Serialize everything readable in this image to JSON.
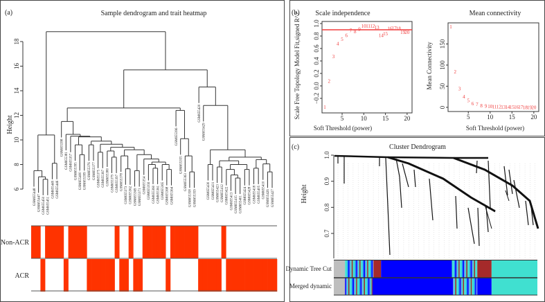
{
  "chart_data": [
    {
      "panel": "(a)",
      "type": "dendrogram",
      "title": "Sample dendrogram and trait heatmap",
      "ylabel": "Height",
      "ylim": [
        6,
        19
      ],
      "yticks": [
        "6",
        "8",
        "10",
        "12",
        "14",
        "16",
        "18"
      ],
      "samples": [
        "GSM655448",
        "GSM655447",
        "GSM655450",
        "GSM655451",
        "GSM655449",
        "GSM655446",
        "GSM655398",
        "GSM655381",
        "GSM655357",
        "GSM655395",
        "GSM655400",
        "GSM655399",
        "GSM655376",
        "GSM655377",
        "GSM655375",
        "GSM655367",
        "GSM655380",
        "GSM655379",
        "GSM655397",
        "GSM655378",
        "GSM655373",
        "GSM655362",
        "GSM655369",
        "GSM655371",
        "GSM655354",
        "GSM655356",
        "GSM655360",
        "GSM655361",
        "GSM655365",
        "GSM655368",
        "GSM655364",
        "GSM655396",
        "GSM655355",
        "GSM655363",
        "GSM655358",
        "GSM655359",
        "GSM655420",
        "GSM655429",
        "GSM655430",
        "GSM655431",
        "GSM655423",
        "GSM655412",
        "GSM655422",
        "GSM655413",
        "GSM655415",
        "GSM655401",
        "GSM655424",
        "GSM655428",
        "GSM655418",
        "GSM655405",
        "GSM655410",
        "GSM655426",
        "GSM655427"
      ],
      "tree": [
        18.8,
        [
          10.4,
          [
            7.5,
            0,
            [
              7.0,
              1,
              [
                6.8,
                2,
                3
              ]
            ]
          ],
          [
            8.1,
            4,
            5
          ]
        ],
        [
          15.7,
          [
            12.6,
            [
              11.5,
              6,
              [
                10.45,
                7,
                [
                  10.3,
                  8,
                  [
                    10.25,
                    [
                      9.6,
                      9,
                      [
                        8.8,
                        10,
                        11
                      ]
                    ],
                    [
                      9.9,
                      [
                        9.6,
                        12,
                        13
                      ],
                      [
                        9.65,
                        [
                          9.0,
                          14,
                          15
                        ],
                        [
                          9.4,
                          [
                            9.1,
                            16,
                            [
                              8.6,
                              17,
                              18
                            ]
                          ],
                          [
                            9.2,
                            [
                              8.7,
                              19,
                              [
                                7.65,
                                20,
                                21
                              ]
                            ],
                            [
                              8.8,
                              [
                                7.5,
                                22,
                                23
                              ],
                              [
                                8.45,
                                24,
                                [
                                  8.2,
                                  [
                                    8.0,
                                    25,
                                    [
                                      7.7,
                                      26,
                                      27
                                    ]
                                  ],
                                  [
                                    8.0,
                                    28,
                                    [
                                      7.6,
                                      29,
                                      30
                                    ]
                                  ]
                                ]
                              ]
                            ]
                          ]
                        ]
                      ]
                    ]
                  ]
                ]
              ]
            ],
            [
              12.4,
              31,
              [
                10.1,
                32,
                [
                  8.7,
                  33,
                  [
                    7.4,
                    34,
                    35
                  ]
                ]
              ]
            ]
          ],
          [
            14.3,
            36,
            [
              12.8,
              37,
              [
                9.2,
                [
                  8.0,
                  38,
                  39
                ],
                [
                  8.6,
                  [
                    8.3,
                    [
                      7.8,
                      40,
                      41
                    ],
                    [
                      8.0,
                      [
                        7.6,
                        42,
                        [
                          7.15,
                          43,
                          [
                            6.9,
                            44,
                            45
                          ]
                        ]
                      ],
                      [
                        7.6,
                        46,
                        47
                      ]
                    ]
                  ],
                  [
                    8.4,
                    [
                      7.7,
                      48,
                      49
                    ],
                    [
                      8.05,
                      50,
                      [
                        7.4,
                        51,
                        52
                      ]
                    ]
                  ]
                ]
              ]
            ]
          ]
        ]
      ],
      "traits": [
        "Non-ACR",
        "ACR"
      ],
      "trait_nonacr": [
        1,
        1,
        0,
        1,
        1,
        1,
        1,
        0,
        1,
        1,
        1,
        1,
        0,
        0,
        0,
        0,
        0,
        0,
        1,
        0,
        0,
        1,
        0,
        0,
        1,
        1,
        1,
        1,
        1,
        0,
        1,
        1,
        1,
        1,
        1,
        1,
        0,
        0,
        0,
        0,
        0,
        1,
        0,
        0,
        0,
        0,
        0,
        0,
        0,
        0,
        0,
        0,
        0
      ],
      "heatmap_color": "#ff3300"
    },
    {
      "panel": "(b)",
      "type": "scatter",
      "title": "Scale independence",
      "xlabel": "Soft Threshold (power)",
      "ylabel": "Scale Free Topology Model Fit,signed R^2",
      "xlim": [
        1,
        20.5
      ],
      "ylim": [
        -0.4,
        1.0
      ],
      "xticks": [
        "5",
        "10",
        "15",
        "20"
      ],
      "yticks": [
        "-0.2",
        "0.0",
        "0.2",
        "0.4",
        "0.6",
        "0.8",
        "1.0"
      ],
      "x": [
        1,
        2,
        3,
        4,
        5,
        6,
        7,
        8,
        9,
        10,
        11,
        12,
        13,
        14,
        15,
        16,
        17,
        18,
        19,
        20
      ],
      "y": [
        -0.34,
        0.08,
        0.47,
        0.68,
        0.75,
        0.81,
        0.89,
        0.87,
        0.91,
        0.96,
        0.96,
        0.96,
        0.94,
        0.81,
        0.84,
        0.92,
        0.93,
        0.92,
        0.86,
        0.86
      ],
      "hline": 0.9,
      "color": "#f03c3c"
    },
    {
      "type": "scatter",
      "title": "Mean connectivity",
      "xlabel": "Soft Threshold (power)",
      "ylabel": "Mean Connectivity",
      "xlim": [
        1,
        20.5
      ],
      "ylim": [
        -5,
        195
      ],
      "xticks": [
        "5",
        "10",
        "15",
        "20"
      ],
      "yticks": [
        "0",
        "50",
        "100",
        "150"
      ],
      "x": [
        1,
        2,
        3,
        4,
        5,
        6,
        7,
        8,
        9,
        10,
        11,
        12,
        13,
        14,
        15,
        16,
        17,
        18,
        19,
        20
      ],
      "y": [
        191,
        84,
        44,
        25,
        16,
        9,
        7,
        4,
        3,
        2,
        1.5,
        1.2,
        1,
        0.8,
        0.6,
        0.5,
        0.4,
        0.3,
        0.3,
        0.2
      ],
      "color": "#f03c3c"
    },
    {
      "panel": "(c)",
      "type": "dendrogram",
      "title": "Cluster Dendrogram",
      "ylabel": "Height",
      "ylim": [
        0.6,
        1.0
      ],
      "yticks": [
        "0.7",
        "0.8",
        "0.9",
        "1.0"
      ],
      "color_rows": [
        {
          "label": "Dynamic Tree Cut",
          "blocks": [
            {
              "from": 0,
              "to": 0.055,
              "color": "#bebebe"
            },
            {
              "from": 0.055,
              "to": 0.195,
              "color": "mixed"
            },
            {
              "from": 0.195,
              "to": 0.232,
              "color": "#a52a2a"
            },
            {
              "from": 0.232,
              "to": 0.58,
              "color": "#0000ff"
            },
            {
              "from": 0.58,
              "to": 0.705,
              "color": "mixed"
            },
            {
              "from": 0.705,
              "to": 0.775,
              "color": "#a52a2a"
            },
            {
              "from": 0.775,
              "to": 1,
              "color": "#40e0d0"
            }
          ]
        },
        {
          "label": "Merged dynamic",
          "blocks": [
            {
              "from": 0,
              "to": 0.055,
              "color": "#bebebe"
            },
            {
              "from": 0.055,
              "to": 0.19,
              "color": "mixed"
            },
            {
              "from": 0.19,
              "to": 0.58,
              "color": "#0000ff"
            },
            {
              "from": 0.58,
              "to": 0.705,
              "color": "mixed"
            },
            {
              "from": 0.705,
              "to": 0.775,
              "color": "#0000ff"
            },
            {
              "from": 0.775,
              "to": 1,
              "color": "#40e0d0"
            }
          ]
        }
      ]
    }
  ]
}
